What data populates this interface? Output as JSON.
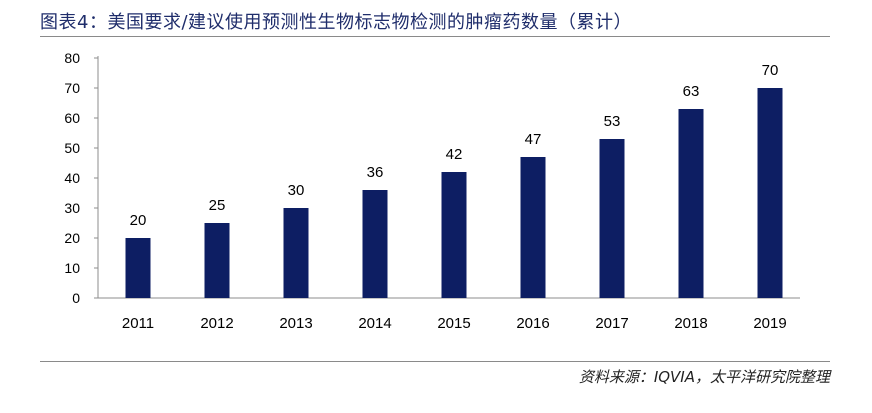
{
  "title": "图表4：美国要求/建议使用预测性生物标志物检测的肿瘤药数量（累计）",
  "source": "资料来源：IQVIA，太平洋研究院整理",
  "colors": {
    "bar": "#0d1e63",
    "axis": "#8c8c8c",
    "text": "#000000",
    "title": "#1f2d6b"
  },
  "chart_data": {
    "type": "bar",
    "categories": [
      "2011",
      "2012",
      "2013",
      "2014",
      "2015",
      "2016",
      "2017",
      "2018",
      "2019"
    ],
    "values": [
      20,
      25,
      30,
      36,
      42,
      47,
      53,
      63,
      70
    ],
    "ylim": [
      0,
      80
    ],
    "yticks": [
      0,
      10,
      20,
      30,
      40,
      50,
      60,
      70,
      80
    ],
    "data_labels": true,
    "grid": false,
    "legend": "none"
  }
}
